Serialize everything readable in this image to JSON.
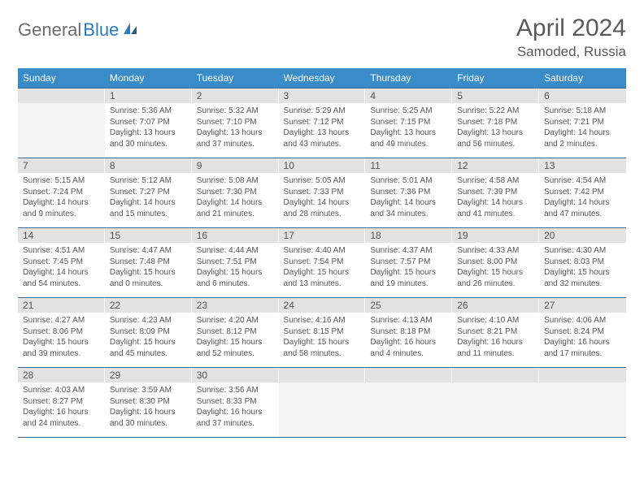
{
  "brand": {
    "general": "General",
    "blue": "Blue"
  },
  "title": "April 2024",
  "location": "Samoded, Russia",
  "weekdays": [
    "Sunday",
    "Monday",
    "Tuesday",
    "Wednesday",
    "Thursday",
    "Friday",
    "Saturday"
  ],
  "colors": {
    "header_bg": "#3a8cc9",
    "header_text": "#ffffff",
    "daynum_bg": "#e3e3e3",
    "border": "#3a6a8f",
    "text": "#555555",
    "brand_blue": "#2b7bbf"
  },
  "weeks": [
    [
      null,
      {
        "n": "1",
        "sunrise": "5:36 AM",
        "sunset": "7:07 PM",
        "daylight": "13 hours and 30 minutes."
      },
      {
        "n": "2",
        "sunrise": "5:32 AM",
        "sunset": "7:10 PM",
        "daylight": "13 hours and 37 minutes."
      },
      {
        "n": "3",
        "sunrise": "5:29 AM",
        "sunset": "7:12 PM",
        "daylight": "13 hours and 43 minutes."
      },
      {
        "n": "4",
        "sunrise": "5:25 AM",
        "sunset": "7:15 PM",
        "daylight": "13 hours and 49 minutes."
      },
      {
        "n": "5",
        "sunrise": "5:22 AM",
        "sunset": "7:18 PM",
        "daylight": "13 hours and 56 minutes."
      },
      {
        "n": "6",
        "sunrise": "5:18 AM",
        "sunset": "7:21 PM",
        "daylight": "14 hours and 2 minutes."
      }
    ],
    [
      {
        "n": "7",
        "sunrise": "5:15 AM",
        "sunset": "7:24 PM",
        "daylight": "14 hours and 9 minutes."
      },
      {
        "n": "8",
        "sunrise": "5:12 AM",
        "sunset": "7:27 PM",
        "daylight": "14 hours and 15 minutes."
      },
      {
        "n": "9",
        "sunrise": "5:08 AM",
        "sunset": "7:30 PM",
        "daylight": "14 hours and 21 minutes."
      },
      {
        "n": "10",
        "sunrise": "5:05 AM",
        "sunset": "7:33 PM",
        "daylight": "14 hours and 28 minutes."
      },
      {
        "n": "11",
        "sunrise": "5:01 AM",
        "sunset": "7:36 PM",
        "daylight": "14 hours and 34 minutes."
      },
      {
        "n": "12",
        "sunrise": "4:58 AM",
        "sunset": "7:39 PM",
        "daylight": "14 hours and 41 minutes."
      },
      {
        "n": "13",
        "sunrise": "4:54 AM",
        "sunset": "7:42 PM",
        "daylight": "14 hours and 47 minutes."
      }
    ],
    [
      {
        "n": "14",
        "sunrise": "4:51 AM",
        "sunset": "7:45 PM",
        "daylight": "14 hours and 54 minutes."
      },
      {
        "n": "15",
        "sunrise": "4:47 AM",
        "sunset": "7:48 PM",
        "daylight": "15 hours and 0 minutes."
      },
      {
        "n": "16",
        "sunrise": "4:44 AM",
        "sunset": "7:51 PM",
        "daylight": "15 hours and 6 minutes."
      },
      {
        "n": "17",
        "sunrise": "4:40 AM",
        "sunset": "7:54 PM",
        "daylight": "15 hours and 13 minutes."
      },
      {
        "n": "18",
        "sunrise": "4:37 AM",
        "sunset": "7:57 PM",
        "daylight": "15 hours and 19 minutes."
      },
      {
        "n": "19",
        "sunrise": "4:33 AM",
        "sunset": "8:00 PM",
        "daylight": "15 hours and 26 minutes."
      },
      {
        "n": "20",
        "sunrise": "4:30 AM",
        "sunset": "8:03 PM",
        "daylight": "15 hours and 32 minutes."
      }
    ],
    [
      {
        "n": "21",
        "sunrise": "4:27 AM",
        "sunset": "8:06 PM",
        "daylight": "15 hours and 39 minutes."
      },
      {
        "n": "22",
        "sunrise": "4:23 AM",
        "sunset": "8:09 PM",
        "daylight": "15 hours and 45 minutes."
      },
      {
        "n": "23",
        "sunrise": "4:20 AM",
        "sunset": "8:12 PM",
        "daylight": "15 hours and 52 minutes."
      },
      {
        "n": "24",
        "sunrise": "4:16 AM",
        "sunset": "8:15 PM",
        "daylight": "15 hours and 58 minutes."
      },
      {
        "n": "25",
        "sunrise": "4:13 AM",
        "sunset": "8:18 PM",
        "daylight": "16 hours and 4 minutes."
      },
      {
        "n": "26",
        "sunrise": "4:10 AM",
        "sunset": "8:21 PM",
        "daylight": "16 hours and 11 minutes."
      },
      {
        "n": "27",
        "sunrise": "4:06 AM",
        "sunset": "8:24 PM",
        "daylight": "16 hours and 17 minutes."
      }
    ],
    [
      {
        "n": "28",
        "sunrise": "4:03 AM",
        "sunset": "8:27 PM",
        "daylight": "16 hours and 24 minutes."
      },
      {
        "n": "29",
        "sunrise": "3:59 AM",
        "sunset": "8:30 PM",
        "daylight": "16 hours and 30 minutes."
      },
      {
        "n": "30",
        "sunrise": "3:56 AM",
        "sunset": "8:33 PM",
        "daylight": "16 hours and 37 minutes."
      },
      null,
      null,
      null,
      null
    ]
  ],
  "labels": {
    "sunrise": "Sunrise: ",
    "sunset": "Sunset: ",
    "daylight": "Daylight: "
  }
}
